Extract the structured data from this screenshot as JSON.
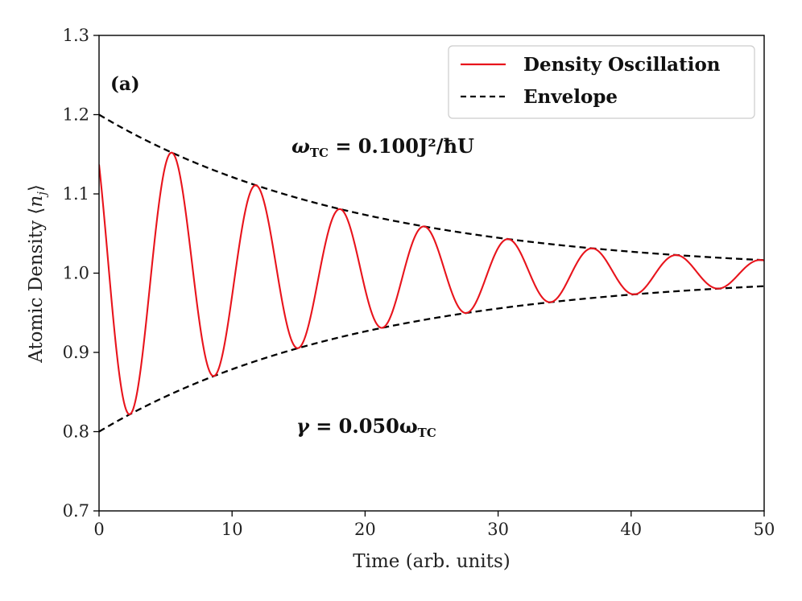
{
  "chart_data": {
    "type": "line",
    "xlabel": "Time (arb. units)",
    "ylabel": "Atomic Density ⟨n_j⟩",
    "ylabel_main": "Atomic Density ",
    "ylabel_symbol": "n",
    "ylabel_subscript": "j",
    "xlim": [
      0,
      50
    ],
    "ylim": [
      0.7,
      1.3
    ],
    "x_ticks": [
      0,
      10,
      20,
      30,
      40,
      50
    ],
    "x_tick_labels": [
      "0",
      "10",
      "20",
      "30",
      "40",
      "50"
    ],
    "y_ticks": [
      0.7,
      0.8,
      0.9,
      1.0,
      1.1,
      1.2,
      1.3
    ],
    "y_tick_labels": [
      "0.7",
      "0.8",
      "0.9",
      "1.0",
      "1.1",
      "1.2",
      "1.3"
    ],
    "grid": false,
    "legend_position": "top-right",
    "panel_label": "(a)",
    "series": [
      {
        "name": "Density Oscillation",
        "color": "#e8141c",
        "style": "solid",
        "model": "1 + A0*exp(-gamma*t)*cos(omega*t + phi)",
        "params": {
          "A0": 0.2,
          "gamma": 0.05,
          "omega": 0.994,
          "phi": 0.816
        }
      },
      {
        "name": "Envelope",
        "color": "#000000",
        "style": "dashed",
        "model": "1 ± A0*exp(-gamma*t)",
        "params": {
          "A0": 0.2,
          "gamma": 0.05
        }
      }
    ],
    "sample_points": {
      "x": [
        0,
        2.2,
        5.4,
        8.6,
        11.7,
        14.9,
        18.0,
        21.2,
        24.3,
        27.5,
        30.6,
        33.8,
        37.0,
        40.1,
        43.2,
        46.3,
        49.5
      ],
      "density": [
        1.137,
        0.821,
        1.153,
        0.87,
        1.112,
        0.905,
        1.081,
        0.931,
        1.059,
        0.949,
        1.043,
        0.963,
        1.031,
        0.973,
        1.023,
        0.98,
        1.016
      ],
      "envelope_upper": [
        1.2,
        1.179,
        1.153,
        1.13,
        1.111,
        1.095,
        1.081,
        1.069,
        1.059,
        1.051,
        1.043,
        1.037,
        1.031,
        1.027,
        1.023,
        1.02,
        1.017
      ]
    },
    "annotations": [
      {
        "id": "omega",
        "symbol": "ω",
        "subscript": "TC",
        "text": " = 0.100J²/ħU",
        "x": 17,
        "y": 1.155
      },
      {
        "id": "gamma",
        "symbol": "γ",
        "subscript": "",
        "text": " = 0.050ω",
        "subscript2": "TC",
        "x": 17,
        "y": 0.805
      }
    ]
  }
}
